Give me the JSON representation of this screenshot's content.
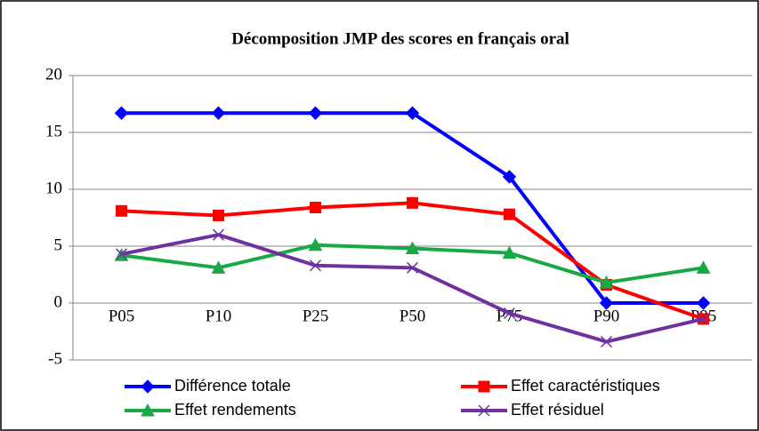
{
  "chart_data": {
    "type": "line",
    "title": "Décomposition JMP des scores en français oral",
    "categories": [
      "P05",
      "P10",
      "P25",
      "P50",
      "P75",
      "P90",
      "P95"
    ],
    "series": [
      {
        "name": "Différence totale",
        "color": "#0000ff",
        "marker": "diamond",
        "values": [
          16.7,
          16.7,
          16.7,
          16.7,
          11.1,
          0,
          0
        ]
      },
      {
        "name": "Effet caractéristiques",
        "color": "#ff0000",
        "marker": "square",
        "values": [
          8.1,
          7.7,
          8.4,
          8.8,
          7.8,
          1.6,
          -1.4
        ]
      },
      {
        "name": "Effet rendements",
        "color": "#19a846",
        "marker": "triangle",
        "values": [
          4.2,
          3.1,
          5.1,
          4.8,
          4.4,
          1.8,
          3.1
        ]
      },
      {
        "name": "Effet résiduel",
        "color": "#7030a0",
        "marker": "x",
        "values": [
          4.3,
          6.0,
          3.3,
          3.1,
          -0.9,
          -3.4,
          -1.4
        ]
      }
    ],
    "ylim": [
      -5,
      20
    ],
    "yticks": [
      -5,
      0,
      5,
      10,
      15,
      20
    ],
    "grid": true
  }
}
